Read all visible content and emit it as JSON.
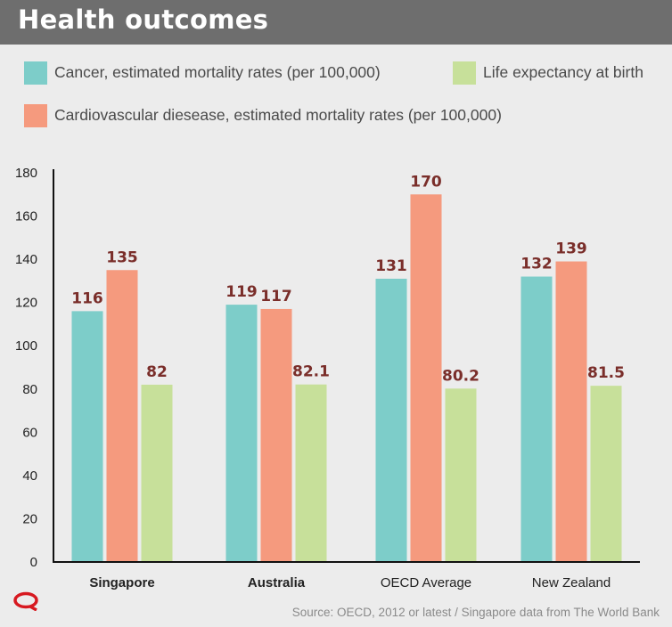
{
  "header": {
    "title": "Health outcomes"
  },
  "legend": {
    "items": [
      {
        "label": "Cancer, estimated mortality rates (per 100,000)",
        "color": "#7dcdc9"
      },
      {
        "label": "Life expectancy at birth",
        "color": "#c7e09a"
      },
      {
        "label": "Cardiovascular diesease, estimated mortality rates (per 100,000)",
        "color": "#f59a7e"
      }
    ]
  },
  "source": "Source: OECD, 2012 or latest / Singapore data from The World Bank",
  "brand_color": "#d71920",
  "chart_data": {
    "type": "bar",
    "categories": [
      "Singapore",
      "Australia",
      "OECD Average",
      "New Zealand"
    ],
    "category_bold": [
      true,
      true,
      false,
      false
    ],
    "series": [
      {
        "name": "Cancer, estimated mortality rates (per 100,000)",
        "color": "#7dcdc9",
        "values": [
          116,
          119,
          131,
          132
        ],
        "labels": [
          "116",
          "119",
          "131",
          "132"
        ]
      },
      {
        "name": "Cardiovascular diesease, estimated mortality rates (per 100,000)",
        "color": "#f59a7e",
        "values": [
          135,
          117,
          170,
          139
        ],
        "labels": [
          "135",
          "117",
          "170",
          "139"
        ]
      },
      {
        "name": "Life expectancy at birth",
        "color": "#c7e09a",
        "values": [
          82,
          82.1,
          80.2,
          81.5
        ],
        "labels": [
          "82",
          "82.1",
          "80.2",
          "81.5"
        ]
      }
    ],
    "ylim": [
      0,
      180
    ],
    "yticks": [
      0,
      20,
      40,
      60,
      80,
      100,
      120,
      140,
      160,
      180
    ],
    "value_label_color": "#7a2e2a",
    "grid": false,
    "legend_position": "top"
  }
}
